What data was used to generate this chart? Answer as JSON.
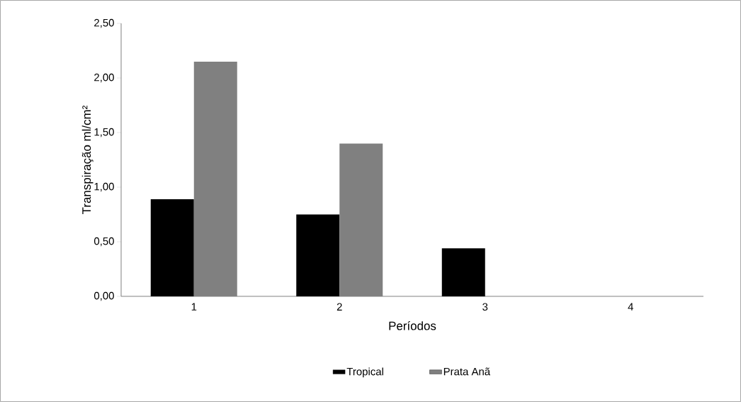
{
  "chart_data": {
    "type": "bar",
    "xlabel": "Períodos",
    "ylabel": "Transpiração ml/cm²",
    "categories": [
      "1",
      "2",
      "3",
      "4"
    ],
    "series": [
      {
        "name": "Tropical",
        "color": "#000000",
        "values": [
          0.89,
          0.75,
          0.44,
          null
        ]
      },
      {
        "name": "Prata Anã",
        "color": "#808080",
        "values": [
          2.15,
          1.4,
          null,
          null
        ]
      }
    ],
    "ylim": [
      0,
      2.5
    ],
    "yticks": [
      {
        "value": 0,
        "label": "0,00"
      },
      {
        "value": 0.5,
        "label": "0,50"
      },
      {
        "value": 1,
        "label": "1,00"
      },
      {
        "value": 1.5,
        "label": "1,50"
      },
      {
        "value": 2,
        "label": "2,00"
      },
      {
        "value": 2.5,
        "label": "2,50"
      }
    ],
    "grid": false,
    "legend": "bottom"
  }
}
